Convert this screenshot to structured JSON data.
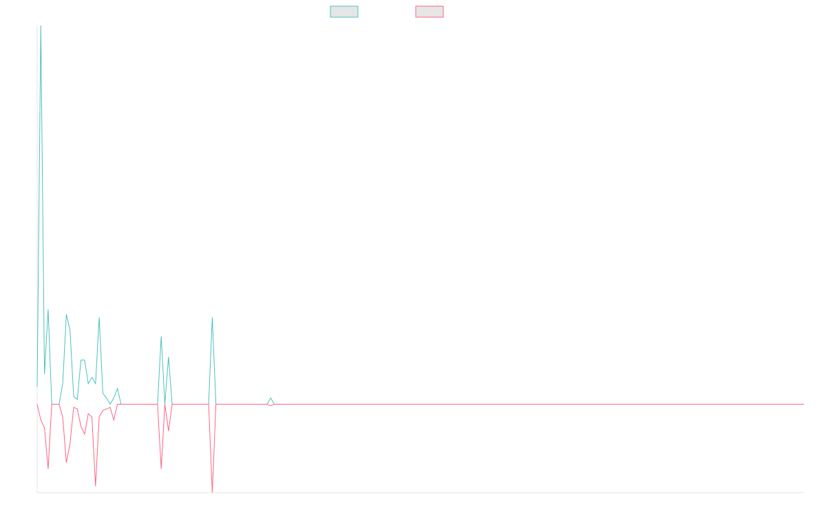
{
  "chart_data": {
    "type": "line",
    "title": "",
    "xlabel": "",
    "ylabel": "",
    "grid": false,
    "legend_position": "top-center",
    "baseline": 0,
    "xlim": [
      0,
      206
    ],
    "ylim": [
      -5.6,
      24
    ],
    "series": [
      {
        "color": "#4bc0c0",
        "legend_fill": "#e6e6e6",
        "values": [
          1.1,
          24.0,
          1.9,
          6.0,
          0.0,
          0.0,
          0.0,
          1.3,
          5.7,
          4.7,
          0.5,
          0.3,
          2.8,
          2.8,
          1.3,
          1.7,
          1.3,
          5.5,
          0.7,
          0.4,
          0.0,
          0.4,
          1.0,
          0.0,
          0.0,
          0.0,
          0.0,
          0.0,
          0.0,
          0.0,
          0.0,
          0.0,
          0.0,
          0.0,
          4.3,
          0.0,
          3.0,
          0.0,
          0.0,
          0.0,
          0.0,
          0.0,
          0.0,
          0.0,
          0.0,
          0.0,
          0.0,
          0.0,
          5.5,
          0.0,
          0.0,
          0.0,
          0.0,
          0.0,
          0.0,
          0.0,
          0.0,
          0.0,
          0.0,
          0.0,
          0.0,
          0.0,
          0.0,
          0.0,
          0.4,
          0.0
        ]
      },
      {
        "color": "#ff6384",
        "legend_fill": "#e6e6e6",
        "values": [
          0.0,
          -1.0,
          -1.5,
          -4.1,
          0.0,
          0.0,
          0.0,
          -0.8,
          -3.7,
          -2.5,
          -0.2,
          -0.3,
          -1.4,
          -1.9,
          -0.6,
          -0.8,
          -5.2,
          -0.8,
          -0.4,
          -0.3,
          -0.2,
          -1.0,
          0.0,
          0.0,
          0.0,
          0.0,
          0.0,
          0.0,
          0.0,
          0.0,
          0.0,
          0.0,
          0.0,
          0.0,
          -4.1,
          0.0,
          -1.7,
          0.0,
          0.0,
          0.0,
          0.0,
          0.0,
          0.0,
          0.0,
          0.0,
          0.0,
          0.0,
          0.0,
          -5.6,
          0.0,
          0.0,
          0.0,
          0.0,
          0.0,
          0.0,
          0.0,
          0.0,
          0.0,
          0.0,
          0.0,
          0.0,
          0.0,
          0.0,
          0.0,
          -0.1,
          0.0
        ]
      }
    ]
  }
}
